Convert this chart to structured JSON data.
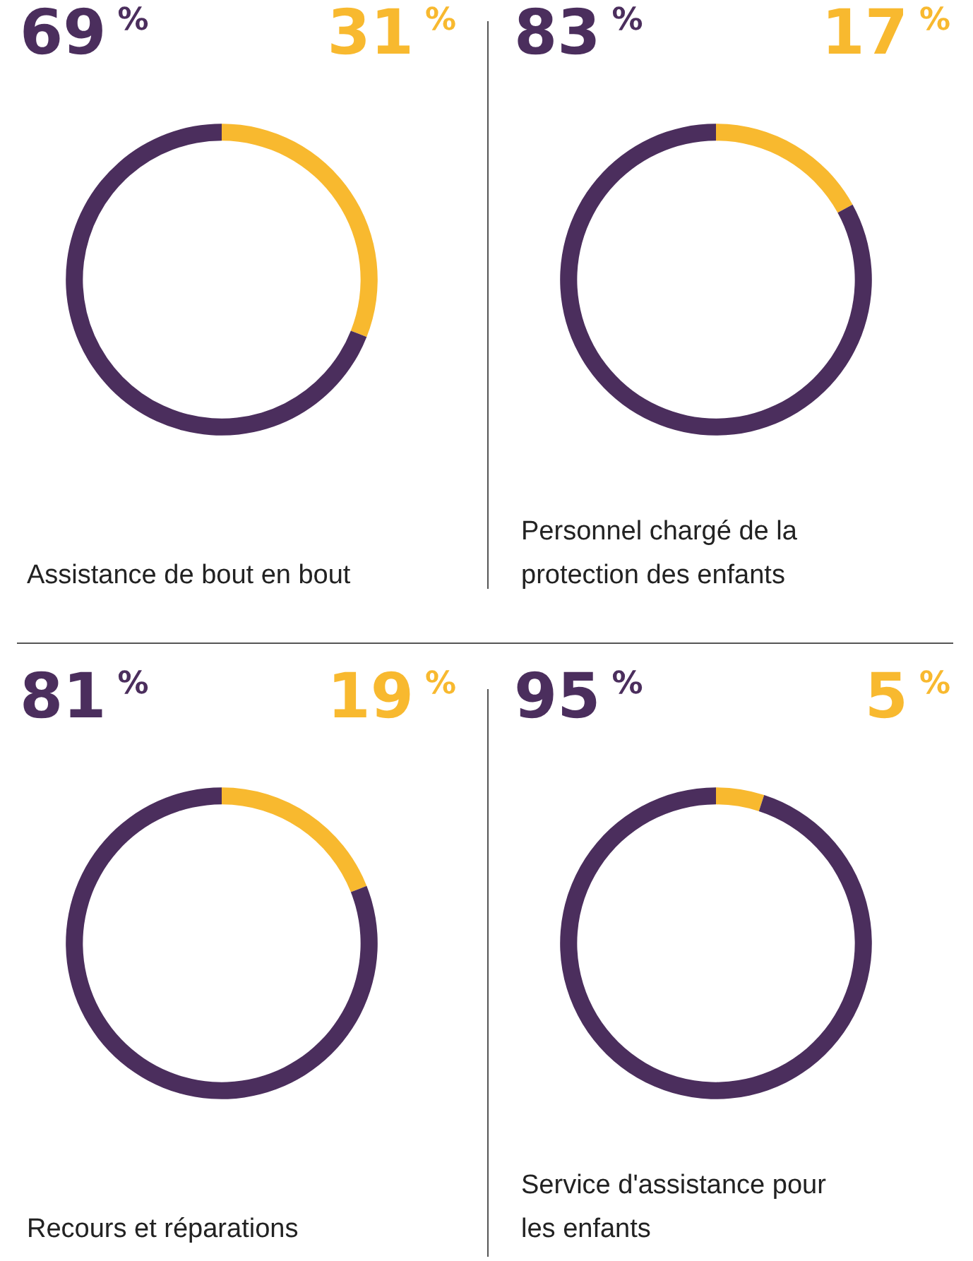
{
  "chart_data": [
    {
      "type": "donut",
      "title": "Assistance de bout en bout",
      "categories": [
        null,
        null
      ],
      "values": [
        31,
        69
      ],
      "colors": [
        "#f8b92f",
        "#4b2e5d"
      ],
      "value_labels": [
        "31 %",
        "69 %"
      ]
    },
    {
      "type": "donut",
      "title": "Personnel chargé de la protection des enfants",
      "categories": [
        null,
        null
      ],
      "values": [
        17,
        83
      ],
      "colors": [
        "#f8b92f",
        "#4b2e5d"
      ],
      "value_labels": [
        "17 %",
        "83 %"
      ]
    },
    {
      "type": "donut",
      "title": "Recours et réparations",
      "categories": [
        null,
        null
      ],
      "values": [
        19,
        81
      ],
      "colors": [
        "#f8b92f",
        "#4b2e5d"
      ],
      "value_labels": [
        "19 %",
        "81 %"
      ]
    },
    {
      "type": "donut",
      "title": "Service d'assistance pour les enfants",
      "categories": [
        null,
        null
      ],
      "values": [
        5,
        95
      ],
      "colors": [
        "#f8b92f",
        "#4b2e5d"
      ],
      "value_labels": [
        "5 %",
        "95 %"
      ]
    }
  ]
}
